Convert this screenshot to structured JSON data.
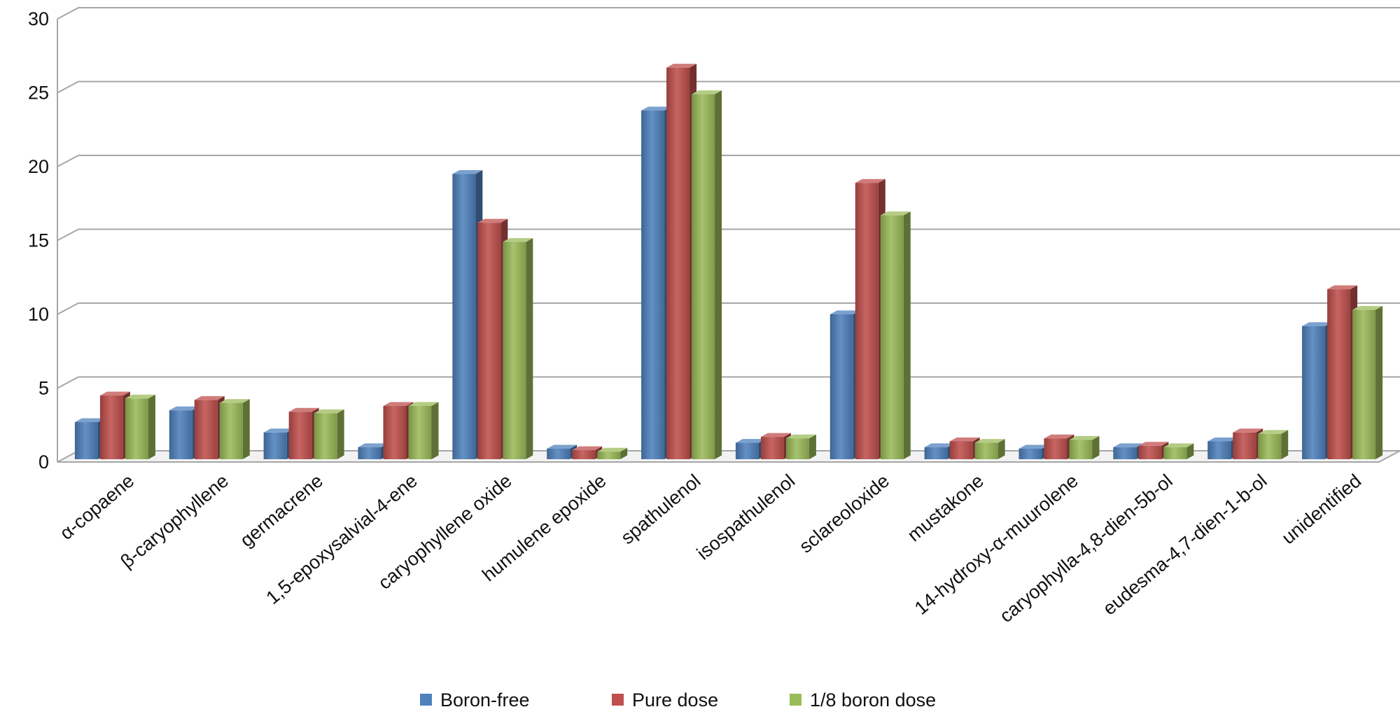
{
  "chart_data": {
    "type": "bar",
    "style": "3d-clustered-column",
    "title": "",
    "xlabel": "",
    "ylabel": "",
    "ylim": [
      0,
      30
    ],
    "yticks": [
      0,
      5,
      10,
      15,
      20,
      25,
      30
    ],
    "grid": true,
    "legend_position": "bottom",
    "categories": [
      "α-copaene",
      "β-caryophyllene",
      "germacrene",
      "1,5-epoxysalvial-4-ene",
      "caryophyllene oxide",
      "humulene epoxide",
      "spathulenol",
      "isospathulenol",
      "sclareoloxide",
      "mustakone",
      "14-hydroxy-α-muurolene",
      "caryophylla-4,8-dien-5b-ol",
      "eudesma-4,7-dien-1-b-ol",
      "unidentified"
    ],
    "series": [
      {
        "name": "Boron-free",
        "color": "#4f81bd",
        "values": [
          2.7,
          3.5,
          2.0,
          1.0,
          19.5,
          0.9,
          23.8,
          1.3,
          10.0,
          1.0,
          0.9,
          1.0,
          1.4,
          9.2
        ]
      },
      {
        "name": "Pure dose",
        "color": "#c0504d",
        "values": [
          4.5,
          4.2,
          3.4,
          3.8,
          16.2,
          0.8,
          26.7,
          1.7,
          18.9,
          1.4,
          1.6,
          1.1,
          2.0,
          11.7
        ]
      },
      {
        "name": "1/8 boron dose",
        "color": "#9bbb59",
        "values": [
          4.3,
          4.0,
          3.3,
          3.8,
          14.9,
          0.7,
          24.9,
          1.6,
          16.7,
          1.3,
          1.5,
          1.0,
          1.9,
          10.3
        ]
      }
    ]
  }
}
